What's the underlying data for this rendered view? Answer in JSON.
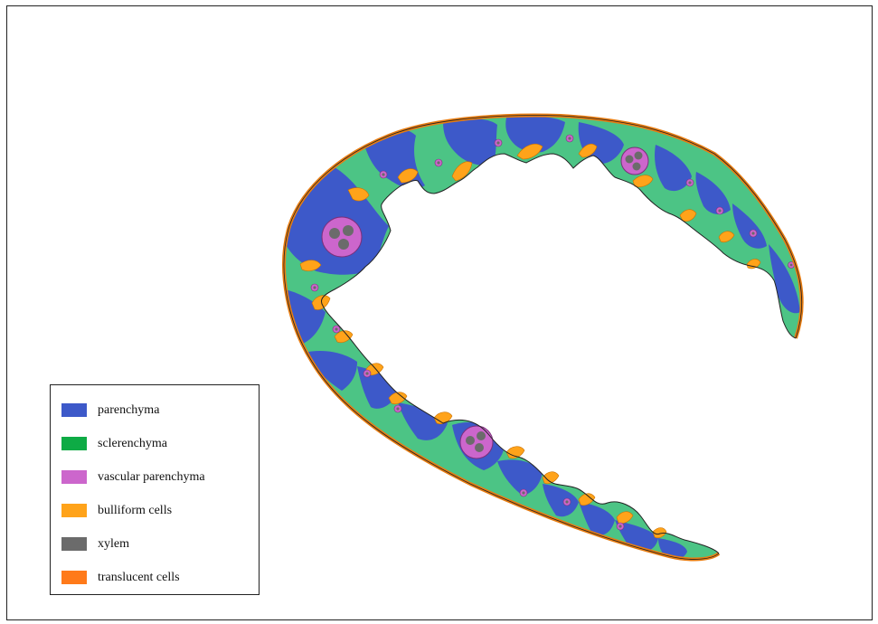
{
  "legend": {
    "items": [
      {
        "label": "parenchyma",
        "color": "#3d59c9"
      },
      {
        "label": "sclerenchyma",
        "color": "#0eab45"
      },
      {
        "label": "vascular parenchyma",
        "color": "#cc66cc"
      },
      {
        "label": "bulliform cells",
        "color": "#ffa31a"
      },
      {
        "label": "xylem",
        "color": "#6b6b6b"
      },
      {
        "label": "translucent cells",
        "color": "#ff7a1a"
      }
    ]
  },
  "colors": {
    "parenchyma": "#3d59c9",
    "sclerenchyma_band": "#4cc485",
    "vascular_parenchyma": "#cc66cc",
    "bulliform": "#ffa31a",
    "xylem": "#6b6b6b",
    "translucent": "#e87d12"
  }
}
